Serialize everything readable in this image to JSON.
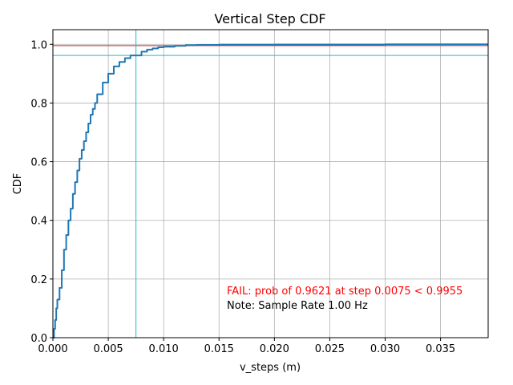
{
  "chart_data": {
    "type": "line",
    "title": "Vertical Step CDF",
    "xlabel": "v_steps (m)",
    "ylabel": "CDF",
    "xlim": [
      0,
      0.0393
    ],
    "ylim": [
      0,
      1.05
    ],
    "x_ticks": [
      "0.000",
      "0.005",
      "0.010",
      "0.015",
      "0.020",
      "0.025",
      "0.030",
      "0.035"
    ],
    "x_tick_values": [
      0,
      0.005,
      0.01,
      0.015,
      0.02,
      0.025,
      0.03,
      0.035
    ],
    "y_ticks": [
      "0.0",
      "0.2",
      "0.4",
      "0.6",
      "0.8",
      "1.0"
    ],
    "y_tick_values": [
      0,
      0.2,
      0.4,
      0.6,
      0.8,
      1.0
    ],
    "grid": true,
    "series": [
      {
        "color": "#1f77b4",
        "x": [
          0,
          0.0001,
          0.0002,
          0.0003,
          0.0004,
          0.0006,
          0.0008,
          0.001,
          0.0012,
          0.0014,
          0.0016,
          0.0018,
          0.002,
          0.0022,
          0.0024,
          0.0026,
          0.0028,
          0.003,
          0.0032,
          0.0034,
          0.0036,
          0.0038,
          0.004,
          0.0045,
          0.005,
          0.0055,
          0.006,
          0.0065,
          0.007,
          0.0075,
          0.008,
          0.0085,
          0.009,
          0.0095,
          0.01,
          0.011,
          0.012,
          0.013,
          0.015,
          0.02,
          0.03,
          0.0393
        ],
        "y": [
          0.0,
          0.03,
          0.06,
          0.1,
          0.13,
          0.17,
          0.23,
          0.3,
          0.35,
          0.4,
          0.44,
          0.49,
          0.53,
          0.57,
          0.61,
          0.64,
          0.67,
          0.7,
          0.73,
          0.76,
          0.78,
          0.8,
          0.83,
          0.87,
          0.9,
          0.925,
          0.94,
          0.953,
          0.962,
          0.9621,
          0.975,
          0.982,
          0.986,
          0.99,
          0.992,
          0.995,
          0.997,
          0.998,
          0.999,
          0.9995,
          1.0,
          1.0
        ]
      }
    ],
    "threshold_line": {
      "y": 0.9955,
      "color": "#d62728"
    },
    "fail_lines": {
      "x": 0.0075,
      "y": 0.9621,
      "color": "#17becf"
    },
    "annotations": [
      {
        "text": "FAIL: prob of 0.9621 at step 0.0075 < 0.9955",
        "color": "#ff0000"
      },
      {
        "text": "Note: Sample Rate 1.00 Hz",
        "color": "#000000"
      }
    ]
  }
}
